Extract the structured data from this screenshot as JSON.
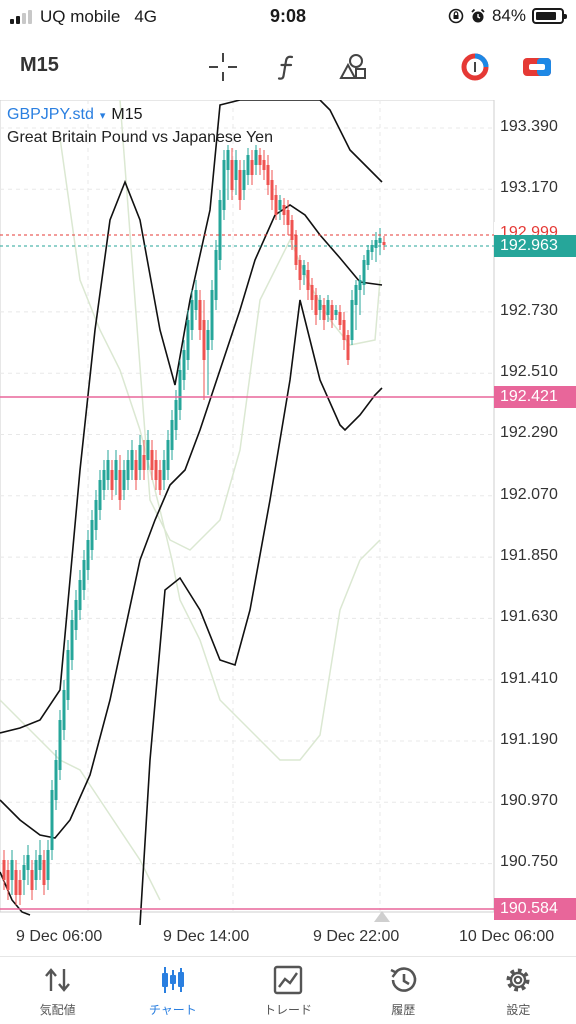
{
  "status": {
    "carrier": "UQ mobile",
    "network": "4G",
    "time": "9:08",
    "battery": "84%",
    "battery_level": 0.84
  },
  "toolbar": {
    "timeframe": "M15",
    "icons": [
      "crosshair-icon",
      "function-icon",
      "objects-icon",
      "trade-toggle-icon",
      "one-click-icon"
    ]
  },
  "chart": {
    "symbol": "GBPJPY.std",
    "symbol_arrow": "▾",
    "timeframe": "M15",
    "description": "Great Britain Pound vs Japanese Yen",
    "price_labels": [
      "193.390",
      "193.170",
      "192.730",
      "192.510",
      "192.290",
      "192.070",
      "191.850",
      "191.630",
      "191.410",
      "191.190",
      "190.970",
      "190.750"
    ],
    "ask_price": "192.999",
    "bid_price": "192.963",
    "line_high": "192.421",
    "line_low": "190.584",
    "time_labels": [
      "9 Dec 06:00",
      "9 Dec 14:00",
      "9 Dec 22:00",
      "10 Dec 06:00"
    ],
    "colors": {
      "bull": "#26a69a",
      "bear": "#ef5350",
      "level_line": "#e8669a",
      "ask_line": "#e53935",
      "bid_tag": "#26a69a",
      "bands_outer": "#111111",
      "bands_inner": "#dbe8d2"
    }
  },
  "nav": {
    "items": [
      {
        "label": "気配値",
        "icon": "quotes-icon"
      },
      {
        "label": "チャート",
        "icon": "chart-icon"
      },
      {
        "label": "トレード",
        "icon": "trade-icon"
      },
      {
        "label": "履歴",
        "icon": "history-icon"
      },
      {
        "label": "設定",
        "icon": "settings-icon"
      }
    ],
    "active": "チャート"
  }
}
